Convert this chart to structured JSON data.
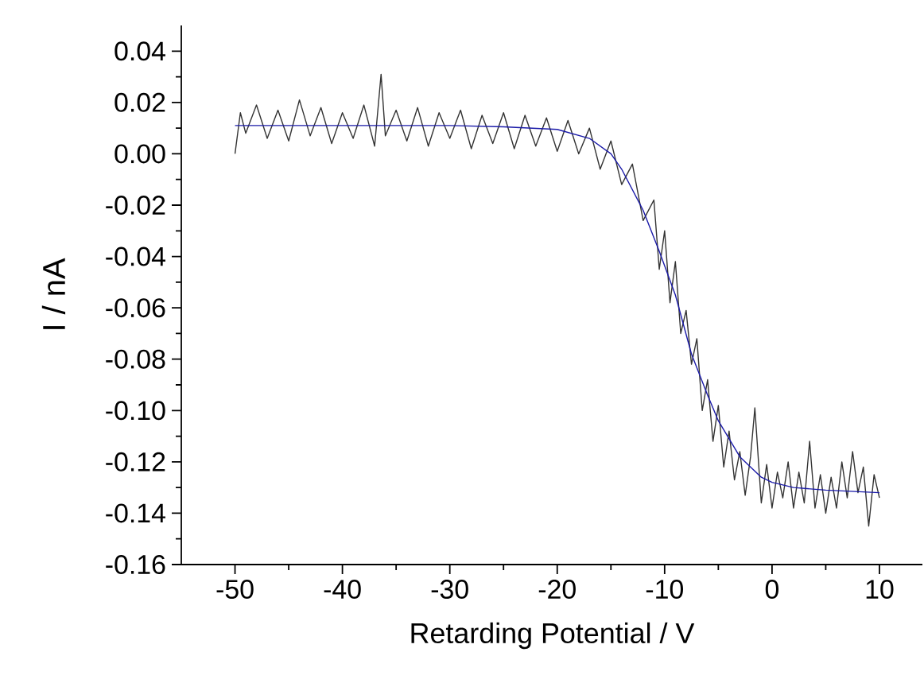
{
  "chart_data": {
    "type": "line",
    "xlabel": "Retarding Potential / V",
    "ylabel": "I / nA",
    "xlim": [
      -55,
      14
    ],
    "ylim": [
      -0.16,
      0.05
    ],
    "xticks": [
      -50,
      -40,
      -30,
      -20,
      -10,
      0,
      10
    ],
    "yticks": [
      {
        "value": 0.04,
        "label": "0.04"
      },
      {
        "value": 0.02,
        "label": "0.02"
      },
      {
        "value": 0,
        "label": "0.00"
      },
      {
        "value": -0.02,
        "label": "-0.02"
      },
      {
        "value": -0.04,
        "label": "-0.04"
      },
      {
        "value": -0.06,
        "label": "-0.06"
      },
      {
        "value": -0.08,
        "label": "-0.08"
      },
      {
        "value": -0.1,
        "label": "-0.10"
      },
      {
        "value": -0.12,
        "label": "-0.12"
      },
      {
        "value": -0.14,
        "label": "-0.14"
      },
      {
        "value": -0.16,
        "label": "-0.16"
      }
    ],
    "series": [
      {
        "color": "#333333",
        "x": [
          -50,
          -49.5,
          -49,
          -48,
          -47,
          -46,
          -45,
          -44,
          -43,
          -42,
          -41,
          -40,
          -39,
          -38,
          -37,
          -36.4,
          -36,
          -35,
          -34,
          -33,
          -32,
          -31,
          -30,
          -29,
          -28,
          -27,
          -26,
          -25,
          -24,
          -23,
          -22,
          -21,
          -20,
          -19,
          -18,
          -17,
          -16,
          -15,
          -14,
          -13,
          -12,
          -11,
          -10.5,
          -10,
          -9.5,
          -9,
          -8.5,
          -8,
          -7.5,
          -7,
          -6.5,
          -6,
          -5.5,
          -5,
          -4.5,
          -4,
          -3.5,
          -3,
          -2.5,
          -2,
          -1.6,
          -1,
          -0.5,
          0,
          0.5,
          1,
          1.5,
          2,
          2.5,
          3,
          3.5,
          4,
          4.5,
          5,
          5.5,
          6,
          6.5,
          7,
          7.5,
          8,
          8.5,
          9,
          9.5,
          10
        ],
        "values": [
          0.0,
          0.016,
          0.008,
          0.019,
          0.006,
          0.017,
          0.005,
          0.021,
          0.007,
          0.018,
          0.004,
          0.016,
          0.006,
          0.019,
          0.003,
          0.031,
          0.007,
          0.017,
          0.005,
          0.018,
          0.003,
          0.016,
          0.006,
          0.017,
          0.002,
          0.015,
          0.004,
          0.016,
          0.002,
          0.015,
          0.003,
          0.014,
          0.001,
          0.013,
          0.0,
          0.01,
          -0.006,
          0.005,
          -0.012,
          -0.004,
          -0.026,
          -0.018,
          -0.045,
          -0.03,
          -0.058,
          -0.042,
          -0.07,
          -0.061,
          -0.082,
          -0.072,
          -0.1,
          -0.088,
          -0.112,
          -0.098,
          -0.122,
          -0.108,
          -0.127,
          -0.116,
          -0.133,
          -0.118,
          -0.099,
          -0.136,
          -0.121,
          -0.138,
          -0.124,
          -0.134,
          -0.12,
          -0.138,
          -0.124,
          -0.136,
          -0.112,
          -0.138,
          -0.125,
          -0.14,
          -0.126,
          -0.138,
          -0.12,
          -0.134,
          -0.116,
          -0.132,
          -0.122,
          -0.145,
          -0.125,
          -0.134
        ]
      },
      {
        "color": "#1a1aa8",
        "x": [
          -50,
          -40,
          -30,
          -25,
          -20,
          -17,
          -15,
          -14,
          -12,
          -10.5,
          -9,
          -7.5,
          -6,
          -5,
          -3,
          -1,
          0,
          2,
          5,
          10
        ],
        "values": [
          0.011,
          0.011,
          0.011,
          0.0105,
          0.0095,
          0.006,
          0.0,
          -0.006,
          -0.022,
          -0.038,
          -0.055,
          -0.078,
          -0.094,
          -0.104,
          -0.118,
          -0.126,
          -0.128,
          -0.13,
          -0.131,
          -0.132
        ]
      }
    ]
  }
}
